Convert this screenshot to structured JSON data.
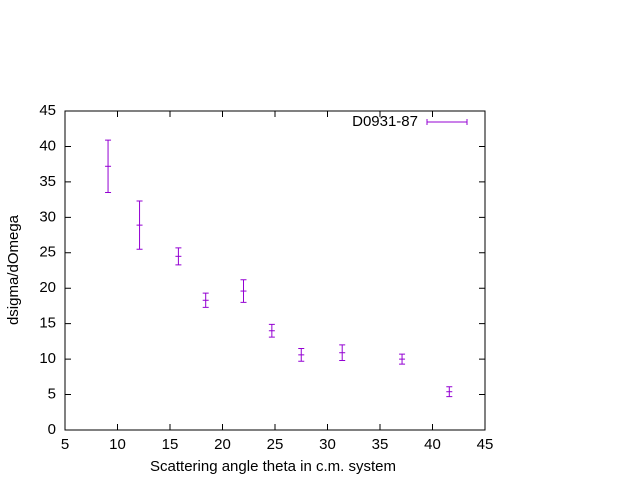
{
  "chart_data": {
    "type": "scatter",
    "xlabel": "Scattering angle theta in c.m. system",
    "ylabel": "dsigma/dOmega",
    "x": [
      9.1,
      12.1,
      15.8,
      18.4,
      22.0,
      24.7,
      27.5,
      31.4,
      37.1,
      41.6
    ],
    "series": [
      {
        "name": "D0931-87",
        "color": "#9400d3",
        "values": [
          37.2,
          28.9,
          24.5,
          18.3,
          19.6,
          14.0,
          10.6,
          10.9,
          10.0,
          5.4
        ],
        "errors": [
          3.7,
          3.4,
          1.2,
          1.0,
          1.6,
          0.9,
          0.9,
          1.1,
          0.7,
          0.7
        ]
      }
    ],
    "xlim": [
      5,
      45
    ],
    "ylim": [
      0,
      45
    ],
    "xticks": [
      5,
      10,
      15,
      20,
      25,
      30,
      35,
      40,
      45
    ],
    "yticks": [
      0,
      5,
      10,
      15,
      20,
      25,
      30,
      35,
      40,
      45
    ],
    "legend": "top-right"
  }
}
